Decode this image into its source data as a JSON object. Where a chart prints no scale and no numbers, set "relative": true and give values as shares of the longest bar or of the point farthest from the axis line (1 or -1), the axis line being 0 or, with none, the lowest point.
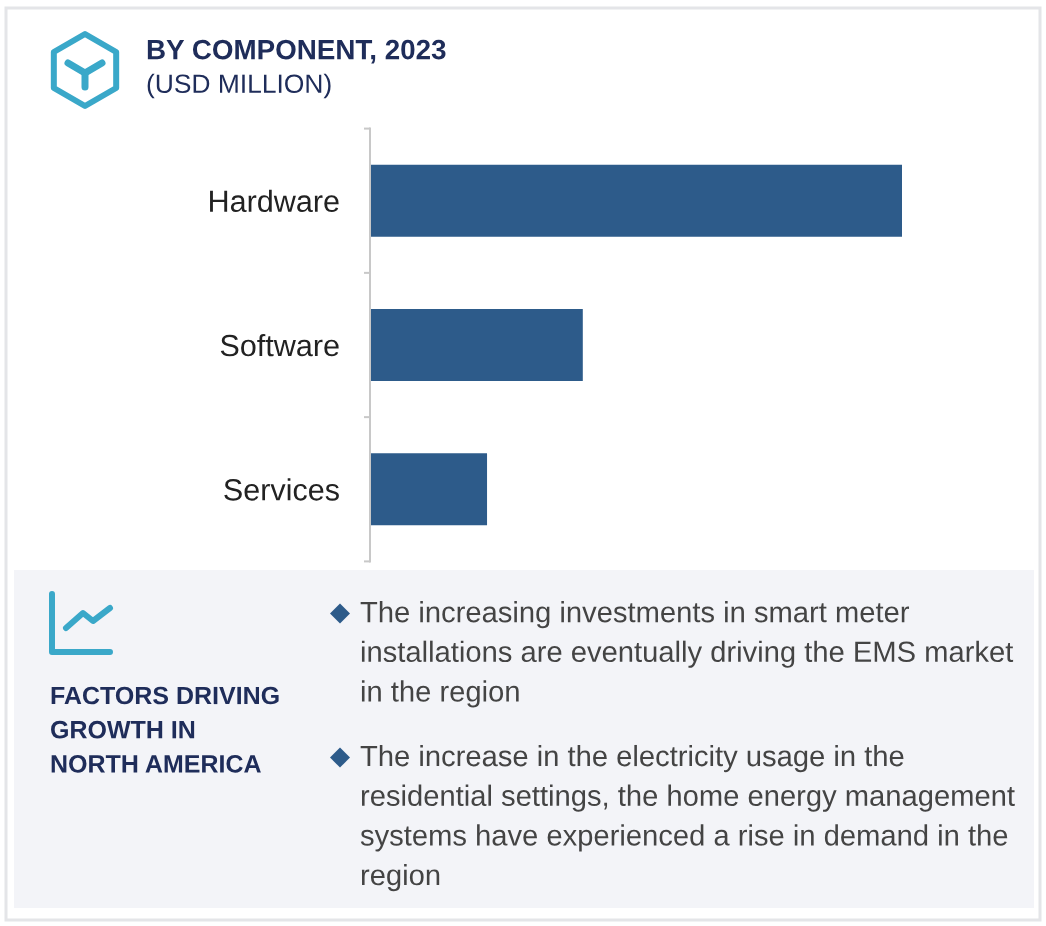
{
  "chart_data": {
    "type": "bar",
    "orientation": "horizontal",
    "relative": true,
    "title": "BY COMPONENT, 2023",
    "subtitle": "(USD MILLION)",
    "categories": [
      "Hardware",
      "Software",
      "Services"
    ],
    "values": [
      1,
      0.4,
      0.22
    ],
    "color": "#2d5b8a",
    "annotations": [
      "FACTORS DRIVING GROWTH IN NORTH AMERICA",
      "The increasing investments in smart meter installations are eventually driving the EMS market in the region",
      "The increase in the electricity usage in the residential settings, the home energy management systems have experienced a rise in demand in the region"
    ]
  }
}
